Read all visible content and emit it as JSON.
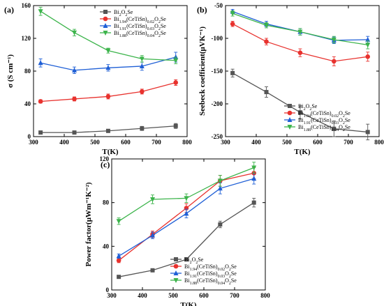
{
  "colors": {
    "Bi2O2Se": "#555555",
    "Bi1.94(CeTiSn)0.02O2Se": "#e8322e",
    "Bi1.91(CeTiSn)0.03O2Se": "#1f5fd6",
    "Bi1.88(CeTiSn)0.04O2Se": "#3cb44b"
  },
  "markers": {
    "Bi2O2Se": "square",
    "Bi1.94(CeTiSn)0.02O2Se": "circle",
    "Bi1.91(CeTiSn)0.03O2Se": "triangle-up",
    "Bi1.88(CeTiSn)0.04O2Se": "triangle-down"
  },
  "chart_data": [
    {
      "panel": "(a)",
      "type": "line",
      "xlabel": "T(K)",
      "ylabel": "σ (S cm⁻¹)",
      "xlim": [
        300,
        800
      ],
      "ylim": [
        0,
        160
      ],
      "xticks": [
        300,
        400,
        500,
        600,
        700,
        800
      ],
      "yticks": [
        0,
        40,
        80,
        120,
        160
      ],
      "legend_position": "top-right",
      "x": [
        323,
        433,
        543,
        653,
        763
      ],
      "series": [
        {
          "name": "Bi2O2Se",
          "legend_main": "Bi",
          "legend_parts": [
            [
              "2",
              ""
            ],
            [
              "O",
              ""
            ],
            [
              "2",
              ""
            ],
            [
              "Se",
              ""
            ]
          ],
          "values": [
            5,
            5,
            7,
            10,
            13
          ],
          "err": [
            1.5,
            1.5,
            2,
            2.5,
            3
          ]
        },
        {
          "name": "Bi1.94(CeTiSn)0.02O2Se",
          "values": [
            43,
            46,
            49,
            55,
            66
          ],
          "err": [
            2,
            2.5,
            3,
            3,
            3.5
          ]
        },
        {
          "name": "Bi1.91(CeTiSn)0.03O2Se",
          "values": [
            90,
            81,
            84,
            86,
            97
          ],
          "err": [
            5,
            4,
            4,
            5,
            6
          ]
        },
        {
          "name": "Bi1.88(CeTiSn)0.04O2Se",
          "values": [
            153,
            127,
            105,
            95,
            93
          ],
          "err": [
            5,
            4,
            3,
            4,
            4
          ]
        }
      ]
    },
    {
      "panel": "(b)",
      "type": "line",
      "xlabel": "T(K)",
      "ylabel": "Seebeck coefficient(μVK⁻¹)",
      "xlim": [
        300,
        800
      ],
      "ylim": [
        -250,
        -50
      ],
      "xticks": [
        300,
        400,
        500,
        600,
        700,
        800
      ],
      "yticks": [
        -250,
        -200,
        -150,
        -100,
        -50
      ],
      "legend_position": "bottom-right",
      "x": [
        323,
        433,
        543,
        653,
        763
      ],
      "series": [
        {
          "name": "Bi2O2Se",
          "values": [
            -153,
            -182,
            -213,
            -238,
            -243
          ],
          "err": [
            6,
            8,
            10,
            12,
            12
          ]
        },
        {
          "name": "Bi1.94(CeTiSn)0.02O2Se",
          "values": [
            -78,
            -105,
            -122,
            -135,
            -128
          ],
          "err": [
            4,
            5,
            6,
            7,
            7
          ]
        },
        {
          "name": "Bi1.91(CeTiSn)0.03O2Se",
          "values": [
            -59,
            -78,
            -90,
            -103,
            -102
          ],
          "err": [
            3,
            4,
            5,
            5,
            5
          ]
        },
        {
          "name": "Bi1.88(CeTiSn)0.04O2Se",
          "values": [
            -62,
            -80,
            -90,
            -102,
            -110
          ],
          "err": [
            4,
            4,
            5,
            5,
            6
          ]
        }
      ]
    },
    {
      "panel": "(c)",
      "type": "line",
      "xlabel": "T(K)",
      "ylabel": "Power factor(μWm⁻¹K⁻²)",
      "xlim": [
        300,
        800
      ],
      "ylim": [
        0,
        120
      ],
      "xticks": [
        300,
        400,
        500,
        600,
        700,
        800
      ],
      "yticks": [
        0,
        40,
        80,
        120
      ],
      "legend_position": "bottom-right",
      "x": [
        323,
        433,
        543,
        653,
        763
      ],
      "series": [
        {
          "name": "Bi2O2Se",
          "values": [
            12,
            18,
            28,
            60,
            80
          ],
          "err": [
            1,
            1,
            1.5,
            3,
            4
          ]
        },
        {
          "name": "Bi1.94(CeTiSn)0.02O2Se",
          "values": [
            27,
            51,
            75,
            100,
            107
          ],
          "err": [
            2,
            3,
            4,
            5,
            5
          ]
        },
        {
          "name": "Bi1.91(CeTiSn)0.03O2Se",
          "values": [
            31,
            50,
            70,
            93,
            102
          ],
          "err": [
            2,
            3,
            4,
            5,
            5
          ]
        },
        {
          "name": "Bi1.88(CeTiSn)0.04O2Se",
          "values": [
            63,
            83,
            84,
            100,
            112
          ],
          "err": [
            3,
            4,
            4,
            5,
            5
          ]
        }
      ]
    }
  ]
}
